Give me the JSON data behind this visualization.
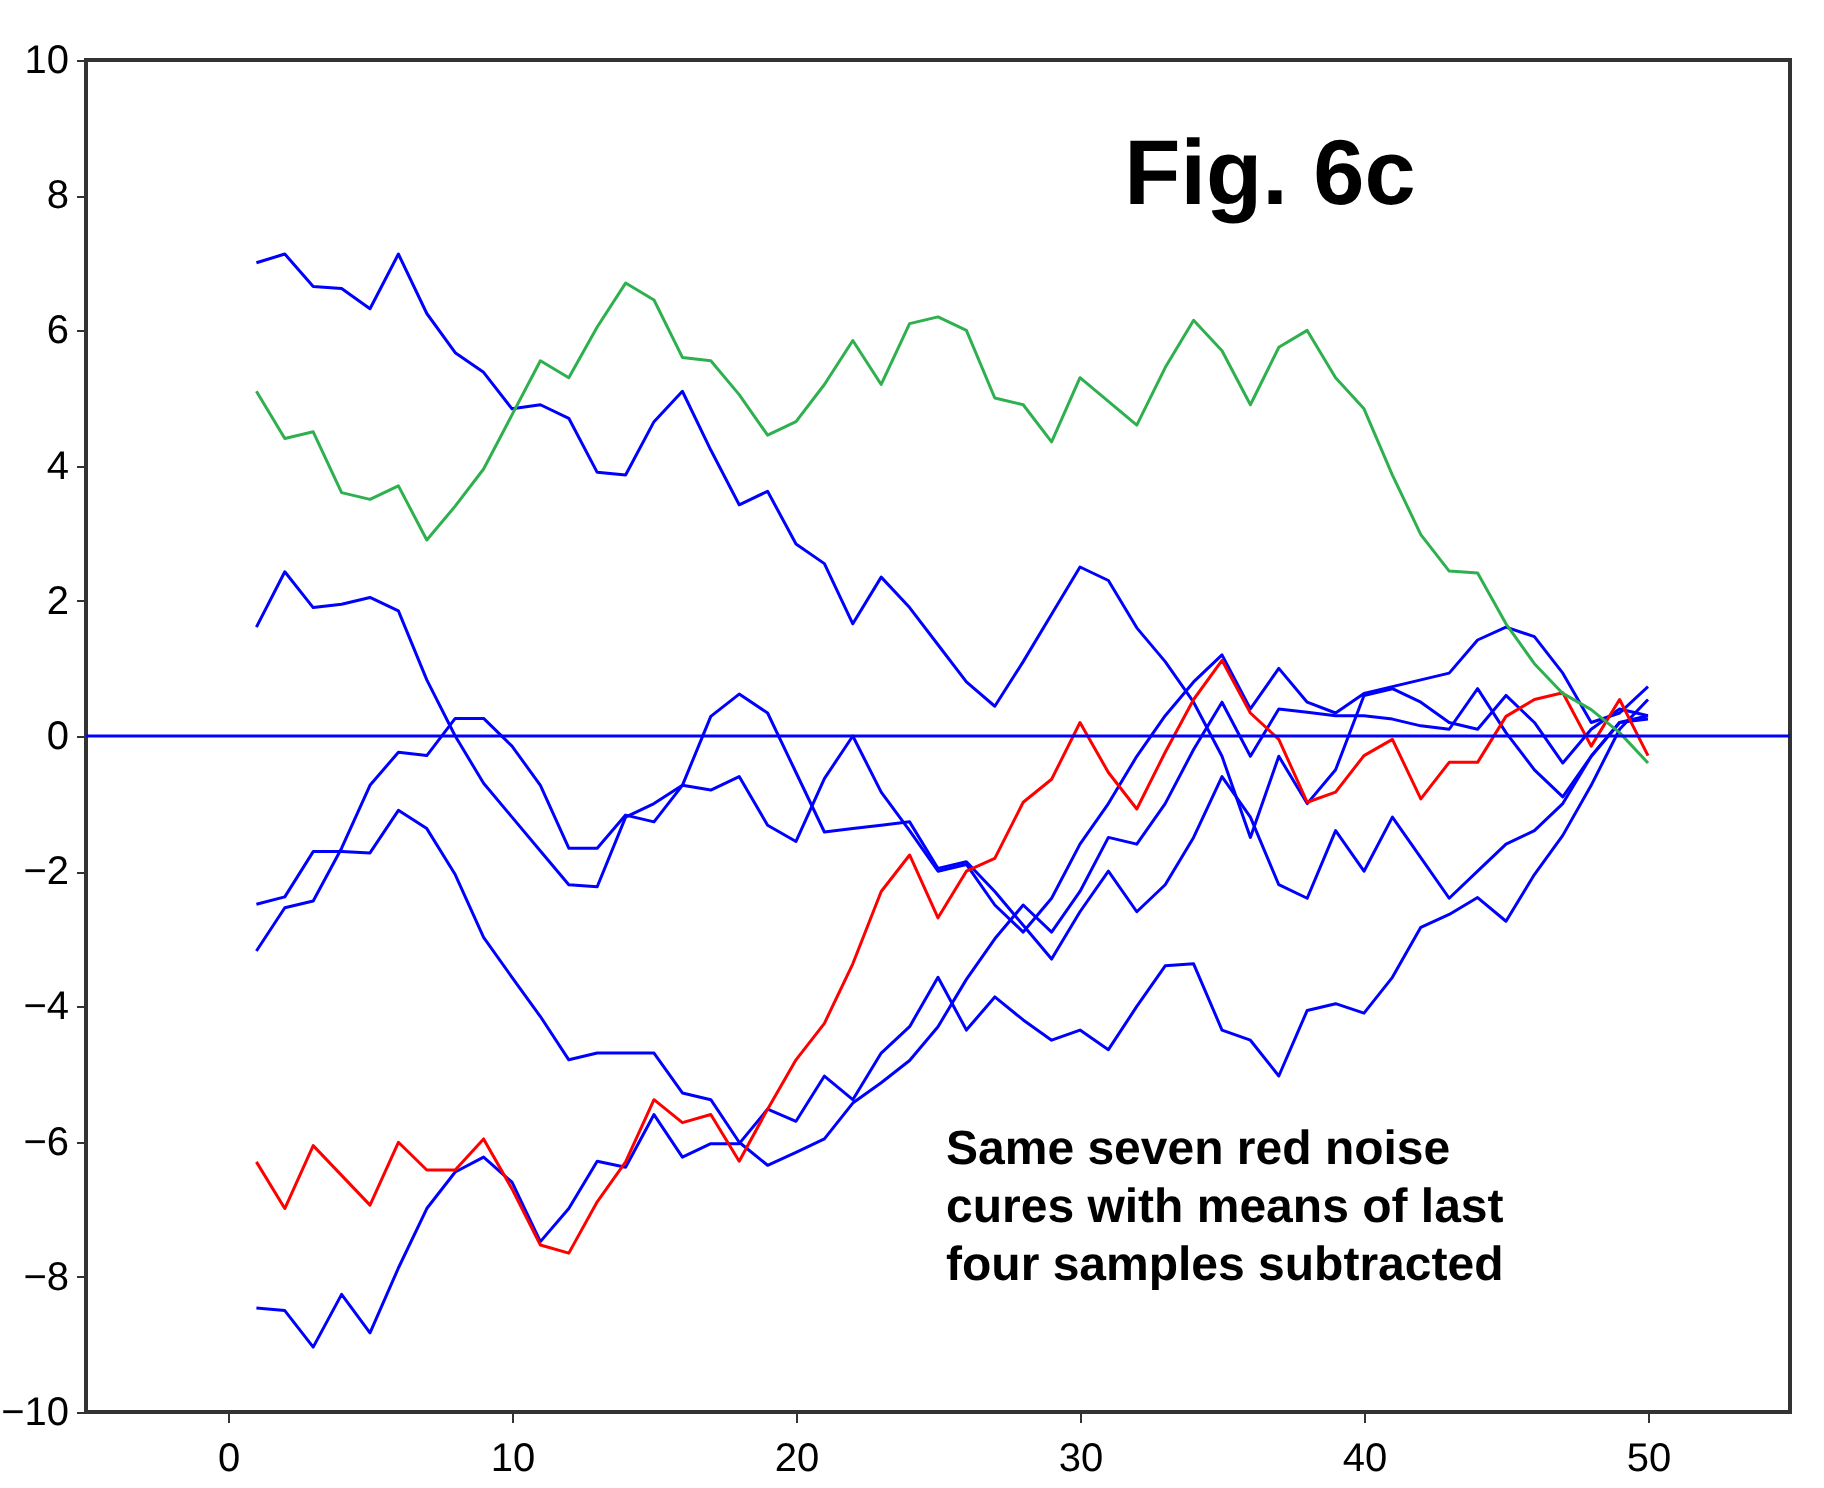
{
  "chart_data": {
    "type": "line",
    "title": "Fig. 6c",
    "x": [
      1,
      2,
      3,
      4,
      5,
      6,
      7,
      8,
      9,
      10,
      11,
      12,
      13,
      14,
      15,
      16,
      17,
      18,
      19,
      20,
      21,
      22,
      23,
      24,
      25,
      26,
      27,
      28,
      29,
      30,
      31,
      32,
      33,
      34,
      35,
      36,
      37,
      38,
      39,
      40,
      41,
      42,
      43,
      44,
      45,
      46,
      47,
      48,
      49,
      50
    ],
    "series": [
      {
        "color": "#0000ff",
        "values": [
          7.0,
          7.13,
          6.65,
          6.62,
          6.32,
          7.13,
          6.25,
          5.67,
          5.38,
          4.84,
          4.9,
          4.7,
          3.9,
          3.86,
          4.65,
          5.1,
          4.23,
          3.42,
          3.62,
          2.84,
          2.55,
          1.66,
          2.35,
          1.9,
          1.35,
          0.8,
          0.44,
          1.1,
          1.8,
          2.5,
          2.3,
          1.6,
          1.1,
          0.5,
          -0.3,
          -1.5,
          -0.3,
          -1.0,
          -0.5,
          0.6,
          0.7,
          0.5,
          0.2,
          0.1,
          0.6,
          0.2,
          -0.4,
          0.1,
          0.4,
          0.3
        ]
      },
      {
        "color": "#0000ff",
        "values": [
          1.61,
          2.43,
          1.9,
          1.95,
          2.05,
          1.85,
          0.83,
          0.0,
          -0.7,
          -1.2,
          -1.7,
          -2.2,
          -2.23,
          -1.2,
          -1.0,
          -0.73,
          -0.8,
          -0.6,
          -1.32,
          -1.56,
          -0.63,
          0.0,
          -0.83,
          -1.4,
          -2.0,
          -1.9,
          -2.5,
          -2.9,
          -2.4,
          -1.6,
          -1.0,
          -0.3,
          0.3,
          0.8,
          1.2,
          0.4,
          1.0,
          0.5,
          0.34,
          0.63,
          0.73,
          0.83,
          0.93,
          1.42,
          1.61,
          1.47,
          0.93,
          0.2,
          0.34,
          0.73
        ]
      },
      {
        "color": "#0000ff",
        "values": [
          -3.18,
          -2.54,
          -2.44,
          -1.66,
          -0.73,
          -0.24,
          -0.29,
          0.26,
          0.26,
          -0.15,
          -0.73,
          -1.66,
          -1.66,
          -1.17,
          -1.27,
          -0.73,
          0.29,
          0.62,
          0.34,
          -0.54,
          -1.42,
          -1.37,
          -1.32,
          -1.27,
          -1.96,
          -1.86,
          -2.3,
          -2.8,
          -3.3,
          -2.6,
          -2.0,
          -2.6,
          -2.2,
          -1.5,
          -0.6,
          -1.2,
          -2.2,
          -2.4,
          -1.4,
          -2.0,
          -1.2,
          -1.8,
          -2.4,
          -2.0,
          -1.6,
          -1.4,
          -1.0,
          -0.3,
          0.2,
          0.25
        ]
      },
      {
        "color": "#0000ff",
        "values": [
          -2.49,
          -2.38,
          -1.71,
          -1.71,
          -1.73,
          -1.1,
          -1.37,
          -2.05,
          -2.98,
          -3.57,
          -4.15,
          -4.79,
          -4.69,
          -4.69,
          -4.69,
          -5.28,
          -5.38,
          -6.01,
          -6.35,
          -6.16,
          -5.96,
          -5.43,
          -5.13,
          -4.8,
          -4.3,
          -3.6,
          -3.0,
          -2.5,
          -2.9,
          -2.3,
          -1.5,
          -1.6,
          -1.0,
          -0.2,
          0.5,
          -0.3,
          0.4,
          0.35,
          0.3,
          0.3,
          0.25,
          0.15,
          0.1,
          0.7,
          0.05,
          -0.5,
          -0.9,
          -0.3,
          0.2,
          0.3
        ]
      },
      {
        "color": "#0000ff",
        "values": [
          -8.46,
          -8.5,
          -9.04,
          -8.26,
          -8.83,
          -7.87,
          -6.99,
          -6.45,
          -6.23,
          -6.6,
          -7.48,
          -6.99,
          -6.29,
          -6.38,
          -5.6,
          -6.23,
          -6.03,
          -6.03,
          -5.52,
          -5.7,
          -5.03,
          -5.38,
          -4.69,
          -4.3,
          -3.57,
          -4.35,
          -3.86,
          -4.2,
          -4.5,
          -4.35,
          -4.64,
          -4.0,
          -3.4,
          -3.37,
          -4.35,
          -4.5,
          -5.03,
          -4.06,
          -3.96,
          -4.1,
          -3.57,
          -2.83,
          -2.64,
          -2.39,
          -2.74,
          -2.05,
          -1.47,
          -0.73,
          0.1,
          0.54
        ]
      },
      {
        "color": "#ff0000",
        "values": [
          -6.3,
          -6.99,
          -6.06,
          -6.5,
          -6.94,
          -6.01,
          -6.42,
          -6.42,
          -5.96,
          -6.7,
          -7.53,
          -7.65,
          -6.89,
          -6.3,
          -5.38,
          -5.72,
          -5.6,
          -6.29,
          -5.52,
          -4.79,
          -4.25,
          -3.37,
          -2.3,
          -1.76,
          -2.69,
          -2.0,
          -1.81,
          -0.98,
          -0.64,
          0.2,
          -0.54,
          -1.08,
          -0.24,
          0.54,
          1.12,
          0.34,
          -0.05,
          -0.98,
          -0.83,
          -0.29,
          -0.05,
          -0.93,
          -0.39,
          -0.39,
          0.29,
          0.54,
          0.64,
          -0.15,
          0.54,
          -0.29
        ]
      },
      {
        "color": "#2eb04f",
        "values": [
          5.1,
          4.4,
          4.5,
          3.6,
          3.5,
          3.7,
          2.9,
          3.4,
          3.95,
          4.75,
          5.55,
          5.3,
          6.05,
          6.7,
          6.45,
          5.6,
          5.55,
          5.05,
          4.45,
          4.65,
          5.2,
          5.85,
          5.2,
          6.1,
          6.2,
          6.0,
          5.0,
          4.9,
          4.35,
          5.3,
          4.95,
          4.6,
          5.45,
          6.15,
          5.7,
          4.9,
          5.75,
          6.0,
          5.3,
          4.84,
          3.86,
          2.98,
          2.44,
          2.41,
          1.66,
          1.07,
          0.63,
          0.39,
          0.05,
          -0.4
        ]
      }
    ],
    "xlim": [
      -5,
      55
    ],
    "xticks": [
      0,
      10,
      20,
      30,
      40,
      50
    ],
    "ylim": [
      -10,
      10
    ],
    "yticks": [
      -10,
      -8,
      -6,
      -4,
      -2,
      0,
      2,
      4,
      6,
      8,
      10
    ],
    "ref_lines": [
      {
        "axis": "y",
        "value": 0,
        "color": "#0000ff"
      }
    ],
    "annotations": [
      "Same seven red noise\ncures with means of last\nfour samples subtracted"
    ],
    "grid": false,
    "legend": false,
    "line_style": "solid",
    "marker": "none"
  }
}
